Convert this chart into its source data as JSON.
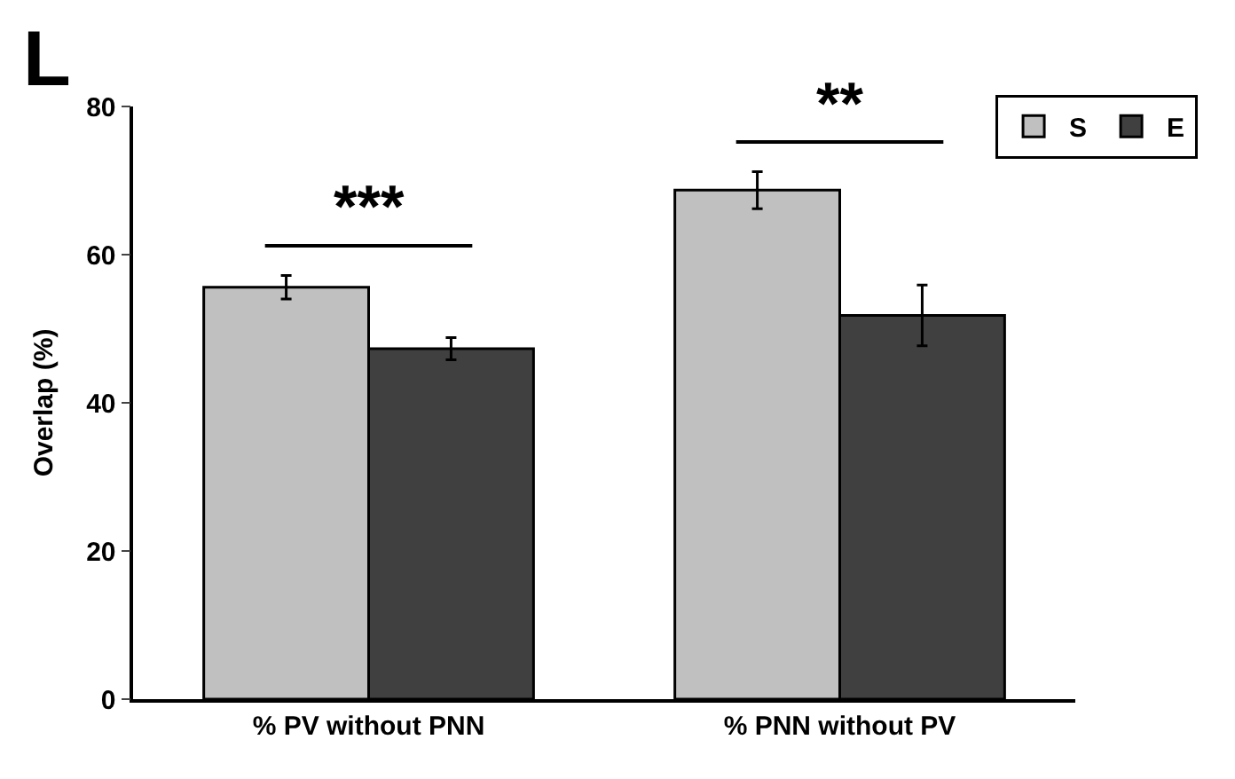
{
  "chart_data": {
    "type": "bar",
    "ylabel": "Overlap (%)",
    "categories": [
      "% PV without PNN",
      "% PNN without PV"
    ],
    "series": [
      {
        "name": "S",
        "color": "#c0c0c0",
        "values": [
          55.6,
          68.7
        ],
        "errors": [
          1.6,
          2.5
        ]
      },
      {
        "name": "E",
        "color": "#404040",
        "values": [
          47.3,
          51.8
        ],
        "errors": [
          1.5,
          4.1
        ]
      }
    ],
    "ylim": [
      0,
      80
    ],
    "yticks": [
      0,
      20,
      40,
      60,
      80
    ],
    "legend": "top right",
    "annotations": [
      "L",
      "***",
      "**"
    ]
  }
}
